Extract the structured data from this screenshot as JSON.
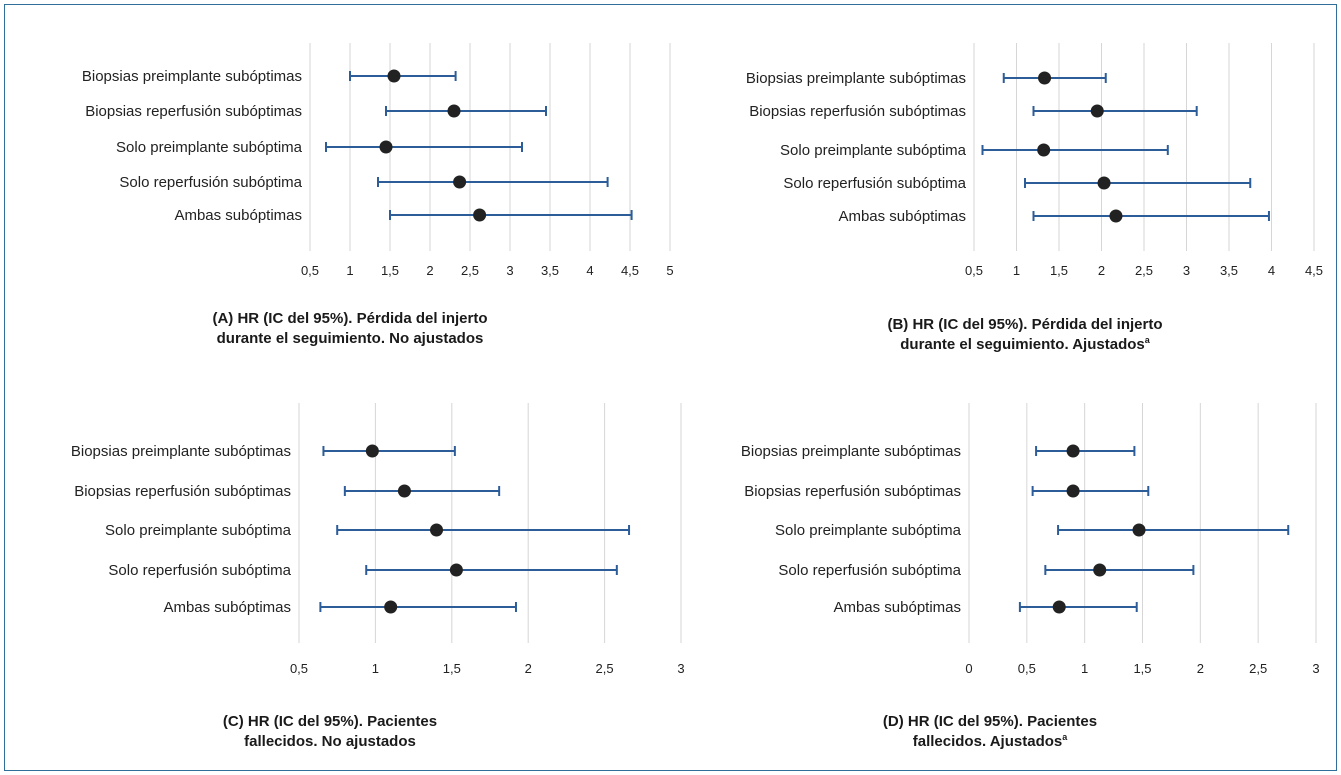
{
  "colors": {
    "ci": "#2c5d99",
    "point": "#222222",
    "grid": "#d6d6d6",
    "border": "#2f6f99"
  },
  "chart_data": [
    {
      "type": "forest",
      "caption_line1": "(A) HR (IC del 95%). Pérdida del injerto",
      "caption_line2": "durante el seguimiento. No ajustados",
      "caption_superscript": "",
      "categories": [
        "Biopsias preimplante subóptimas",
        "Biopsias reperfusión subóptimas",
        "Solo preimplante subóptima",
        "Solo reperfusión subóptima",
        "Ambas subóptimas"
      ],
      "hr": [
        1.55,
        2.3,
        1.45,
        2.37,
        2.62
      ],
      "ci_low": [
        1.0,
        1.45,
        0.7,
        1.35,
        1.5
      ],
      "ci_high": [
        2.32,
        3.45,
        3.15,
        4.22,
        4.52
      ],
      "xlim": [
        0.5,
        5
      ],
      "ticks": [
        0.5,
        1,
        1.5,
        2,
        2.5,
        3,
        3.5,
        4,
        4.5,
        5
      ],
      "tick_labels": [
        "0,5",
        "1",
        "1,5",
        "2",
        "2,5",
        "3",
        "3,5",
        "4",
        "4,5",
        "5"
      ]
    },
    {
      "type": "forest",
      "caption_line1": "(B) HR (IC del 95%). Pérdida del injerto",
      "caption_line2": "durante el seguimiento. Ajustados",
      "caption_superscript": "a",
      "categories": [
        "Biopsias preimplante subóptimas",
        "Biopsias reperfusión subóptimas",
        "Solo preimplante subóptima",
        "Solo reperfusión subóptima",
        "Ambas subóptimas"
      ],
      "hr": [
        1.33,
        1.95,
        1.32,
        2.03,
        2.17
      ],
      "ci_low": [
        0.85,
        1.2,
        0.6,
        1.1,
        1.2
      ],
      "ci_high": [
        2.05,
        3.12,
        2.78,
        3.75,
        3.97
      ],
      "xlim": [
        0.5,
        4.5
      ],
      "ticks": [
        0.5,
        1,
        1.5,
        2,
        2.5,
        3,
        3.5,
        4,
        4.5
      ],
      "tick_labels": [
        "0,5",
        "1",
        "1,5",
        "2",
        "2,5",
        "3",
        "3,5",
        "4",
        "4,5"
      ]
    },
    {
      "type": "forest",
      "caption_line1": "(C) HR (IC del 95%). Pacientes",
      "caption_line2": "fallecidos. No ajustados",
      "caption_superscript": "",
      "categories": [
        "Biopsias preimplante subóptimas",
        "Biopsias reperfusión subóptimas",
        "Solo preimplante subóptima",
        "Solo reperfusión subóptima",
        "Ambas subóptimas"
      ],
      "hr": [
        0.98,
        1.19,
        1.4,
        1.53,
        1.1
      ],
      "ci_low": [
        0.66,
        0.8,
        0.75,
        0.94,
        0.64
      ],
      "ci_high": [
        1.52,
        1.81,
        2.66,
        2.58,
        1.92
      ],
      "xlim": [
        0.5,
        3
      ],
      "ticks": [
        0.5,
        1,
        1.5,
        2,
        2.5,
        3
      ],
      "tick_labels": [
        "0,5",
        "1",
        "1,5",
        "2",
        "2,5",
        "3"
      ]
    },
    {
      "type": "forest",
      "caption_line1": "(D) HR (IC del 95%). Pacientes",
      "caption_line2": "fallecidos. Ajustados",
      "caption_superscript": "a",
      "categories": [
        "Biopsias preimplante subóptimas",
        "Biopsias reperfusión subóptimas",
        "Solo preimplante subóptima",
        "Solo reperfusión subóptima",
        "Ambas subóptimas"
      ],
      "hr": [
        0.9,
        0.9,
        1.47,
        1.13,
        0.78
      ],
      "ci_low": [
        0.58,
        0.55,
        0.77,
        0.66,
        0.44
      ],
      "ci_high": [
        1.43,
        1.55,
        2.76,
        1.94,
        1.45
      ],
      "xlim": [
        0,
        3
      ],
      "ticks": [
        0,
        0.5,
        1,
        1.5,
        2,
        2.5,
        3
      ],
      "tick_labels": [
        "0",
        "0,5",
        "1",
        "1,5",
        "2",
        "2,5",
        "3"
      ]
    }
  ]
}
